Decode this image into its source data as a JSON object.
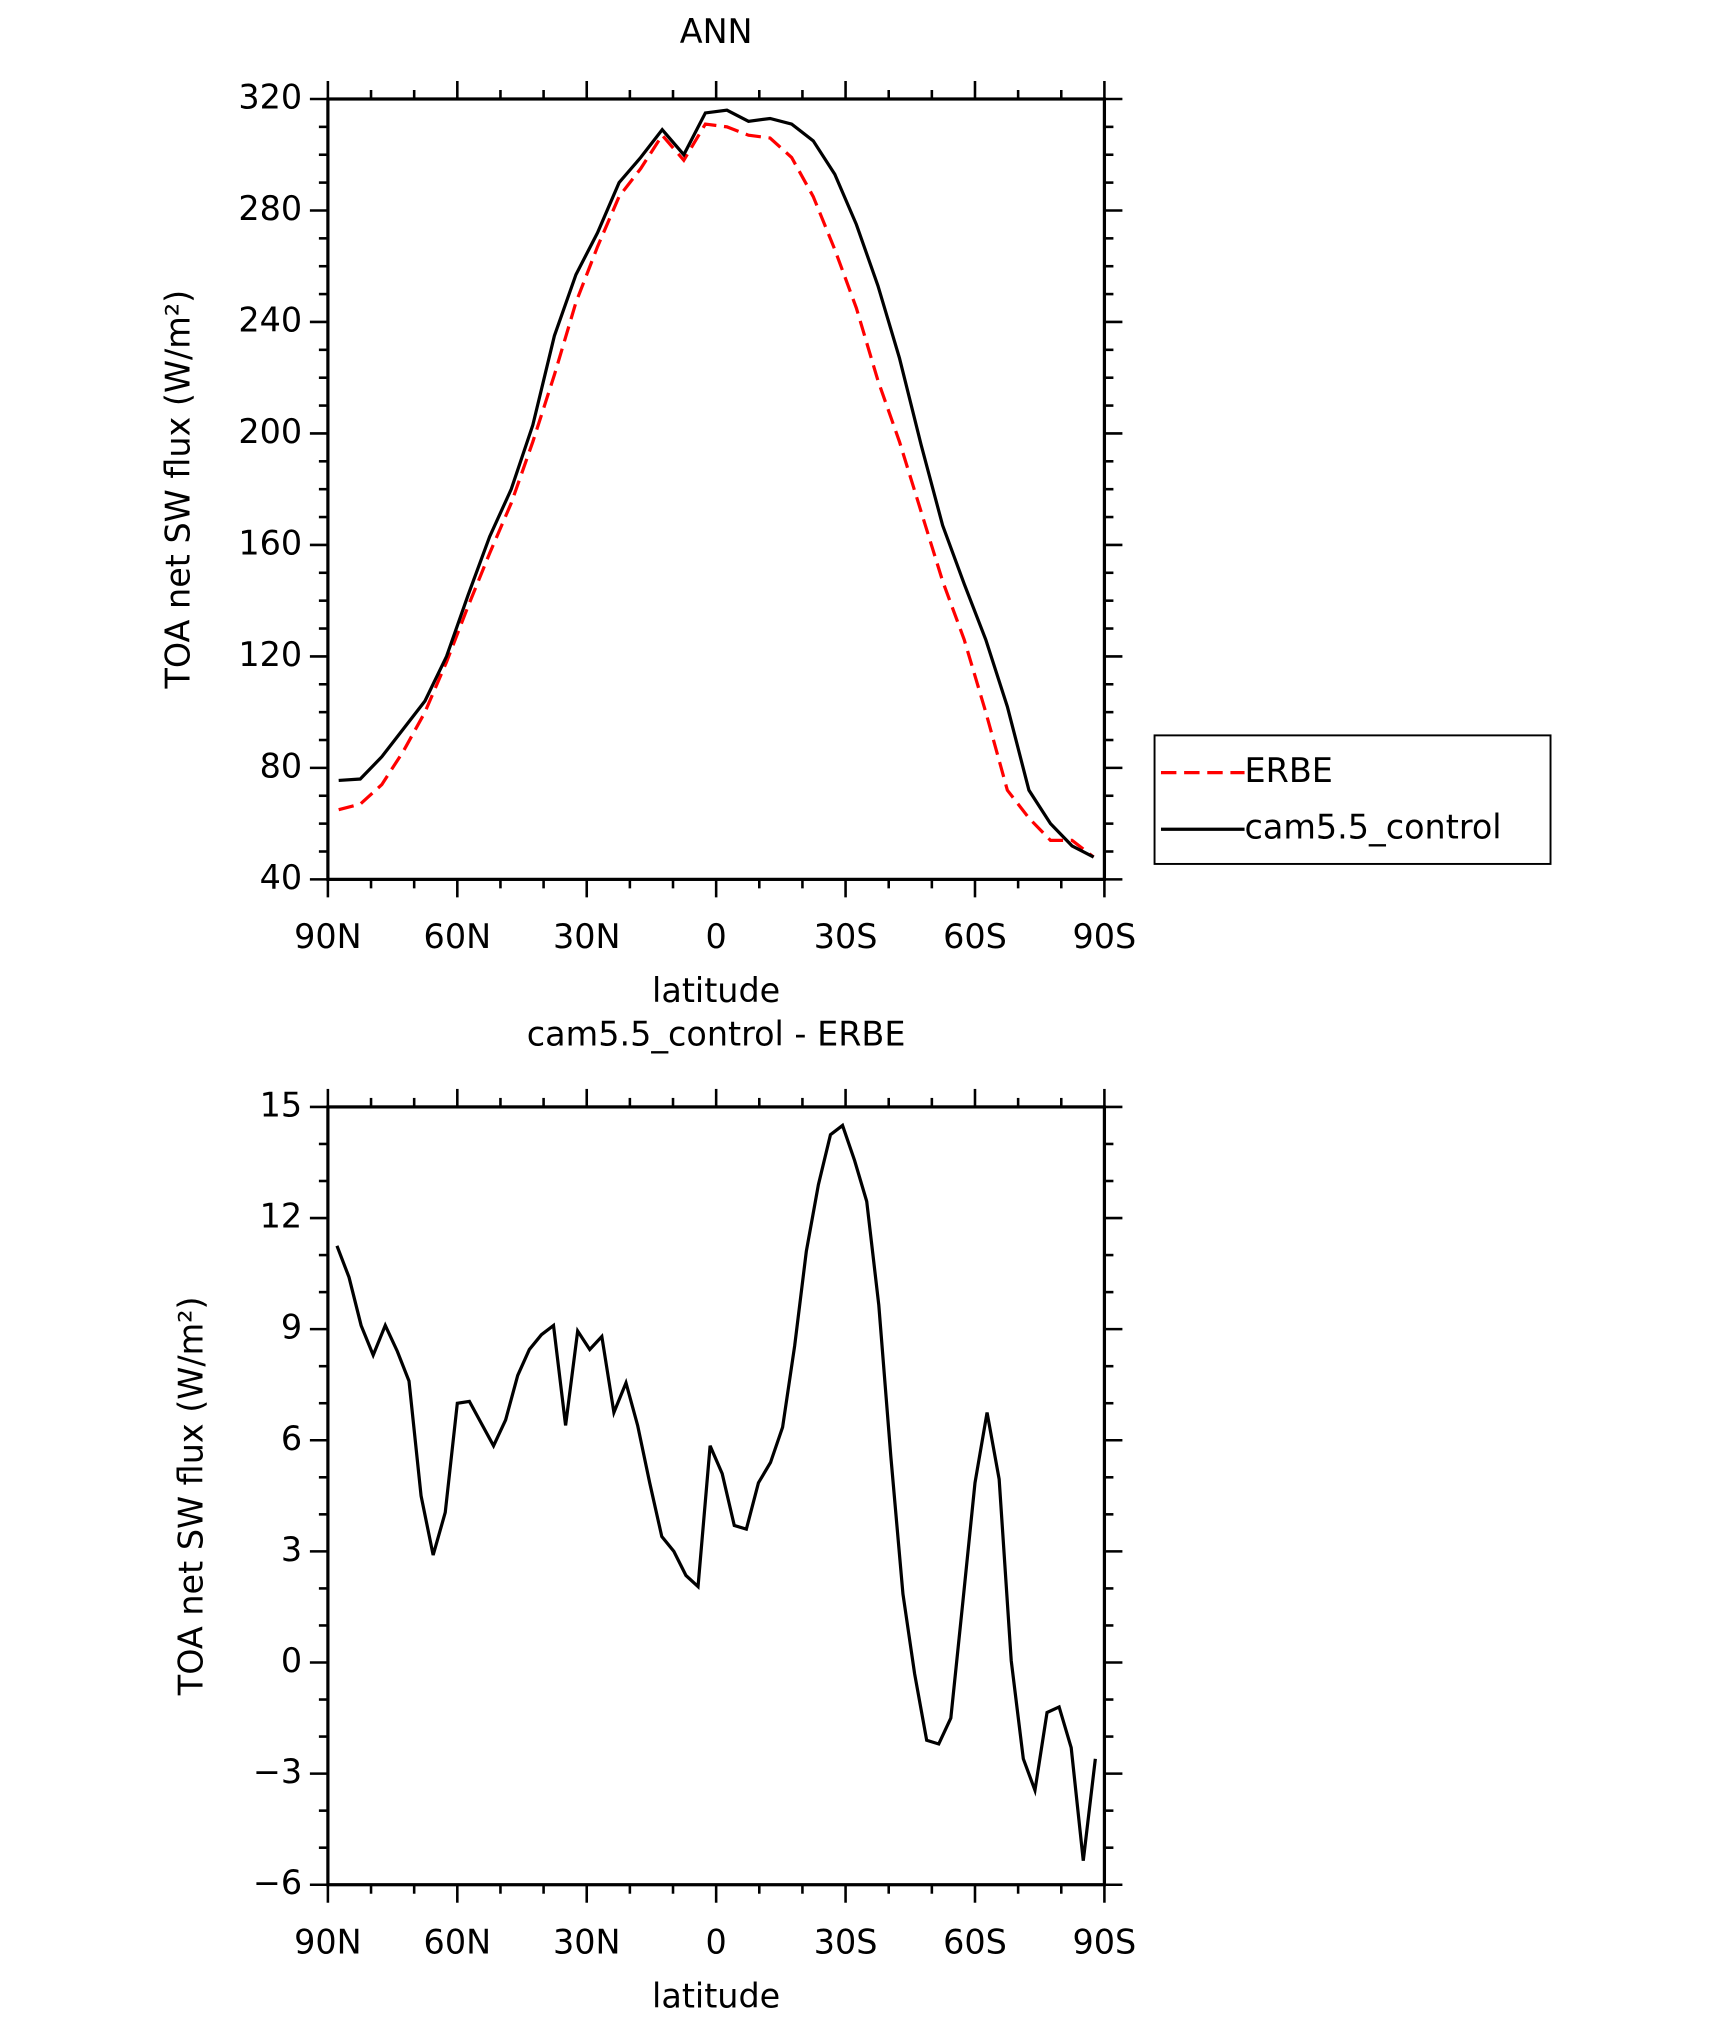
{
  "chart_data": [
    {
      "type": "line",
      "title": "ANN",
      "xlabel": "latitude",
      "ylabel": "TOA net SW flux (W/m²)",
      "x": [
        87.5,
        82.5,
        77.5,
        72.5,
        67.5,
        62.5,
        57.5,
        52.5,
        47.5,
        42.5,
        37.5,
        32.5,
        27.5,
        22.5,
        17.5,
        12.5,
        7.5,
        2.5,
        -2.5,
        -7.5,
        -12.5,
        -17.5,
        -22.5,
        -27.5,
        -32.5,
        -37.5,
        -42.5,
        -47.5,
        -52.5,
        -57.5,
        -62.5,
        -67.5,
        -72.5,
        -77.5,
        -82.5,
        -87.5
      ],
      "series": [
        {
          "name": "ERBE",
          "color": "#ff0000",
          "dashed": true,
          "values": [
            65,
            67,
            74,
            86,
            100,
            118,
            138,
            157,
            175,
            197,
            221,
            247,
            267,
            285,
            295,
            307,
            298,
            311,
            310,
            307,
            306,
            299,
            285,
            266,
            245,
            219,
            197,
            172,
            147,
            126,
            100,
            72,
            62,
            54,
            54,
            48
          ]
        },
        {
          "name": "cam5.5_control",
          "color": "#000000",
          "dashed": false,
          "values": [
            75.5,
            76,
            84,
            94,
            104,
            120,
            142,
            163,
            180,
            203,
            235,
            257,
            272,
            290,
            299,
            309,
            300,
            315,
            316,
            312,
            313,
            311,
            305,
            293,
            275,
            253,
            227,
            196,
            167,
            146,
            126,
            102,
            72,
            60,
            52,
            48
          ]
        }
      ],
      "xlim": [
        90,
        -90
      ],
      "ylim": [
        40,
        320
      ],
      "xticks": [
        {
          "value": 90,
          "label": "90N"
        },
        {
          "value": 60,
          "label": "60N"
        },
        {
          "value": 30,
          "label": "30N"
        },
        0,
        {
          "value": -30,
          "label": "30S"
        },
        {
          "value": -60,
          "label": "60S"
        },
        {
          "value": -90,
          "label": "90S"
        }
      ],
      "yticks": [
        40,
        80,
        120,
        160,
        200,
        240,
        280,
        320
      ],
      "legend": "right"
    },
    {
      "type": "line",
      "title": "cam5.5_control - ERBE",
      "xlabel": "latitude",
      "ylabel": "TOA net SW flux (W/m²)",
      "x": [
        87.9,
        85.1,
        82.3,
        79.5,
        76.7,
        73.9,
        71.2,
        68.4,
        65.6,
        62.8,
        60.0,
        57.2,
        54.4,
        51.6,
        48.8,
        46.0,
        43.3,
        40.5,
        37.7,
        34.9,
        32.1,
        29.3,
        26.5,
        23.7,
        20.9,
        18.2,
        15.4,
        12.6,
        9.8,
        7.0,
        4.2,
        1.4,
        -1.4,
        -4.2,
        -7.0,
        -9.8,
        -12.6,
        -15.4,
        -18.2,
        -20.9,
        -23.7,
        -26.5,
        -29.3,
        -32.1,
        -34.9,
        -37.7,
        -40.5,
        -43.3,
        -46.0,
        -48.8,
        -51.6,
        -54.4,
        -57.2,
        -60.0,
        -62.8,
        -65.6,
        -68.4,
        -71.2,
        -73.9,
        -76.7,
        -79.5,
        -82.3,
        -85.1,
        -87.9
      ],
      "series": [
        {
          "color": "#000000",
          "dashed": false,
          "values": [
            11.25,
            10.4,
            9.1,
            8.3,
            9.1,
            8.4,
            7.6,
            4.5,
            2.9,
            4.05,
            7.0,
            7.05,
            6.45,
            5.85,
            6.55,
            7.75,
            8.45,
            8.85,
            9.1,
            6.4,
            8.95,
            8.45,
            8.8,
            6.75,
            7.55,
            6.4,
            4.85,
            3.4,
            3.0,
            2.35,
            2.05,
            5.85,
            5.1,
            3.7,
            3.6,
            4.85,
            5.4,
            6.35,
            8.55,
            11.1,
            12.9,
            14.25,
            14.5,
            13.55,
            12.45,
            9.65,
            5.55,
            1.85,
            -0.3,
            -2.1,
            -2.2,
            -1.5,
            1.65,
            4.85,
            6.75,
            4.95,
            0.05,
            -2.6,
            -3.45,
            -1.35,
            -1.2,
            -2.3,
            -5.35,
            -2.6
          ]
        }
      ],
      "xlim": [
        90,
        -90
      ],
      "ylim": [
        -6,
        15
      ],
      "xticks": [
        {
          "value": 90,
          "label": "90N"
        },
        {
          "value": 60,
          "label": "60N"
        },
        {
          "value": 30,
          "label": "30N"
        },
        0,
        {
          "value": -30,
          "label": "30S"
        },
        {
          "value": -60,
          "label": "60S"
        },
        {
          "value": -90,
          "label": "90S"
        }
      ],
      "yticks": [
        {
          "value": -6,
          "label": "−6"
        },
        {
          "value": -3,
          "label": "−3"
        },
        0,
        3,
        6,
        9,
        12,
        15
      ]
    }
  ]
}
